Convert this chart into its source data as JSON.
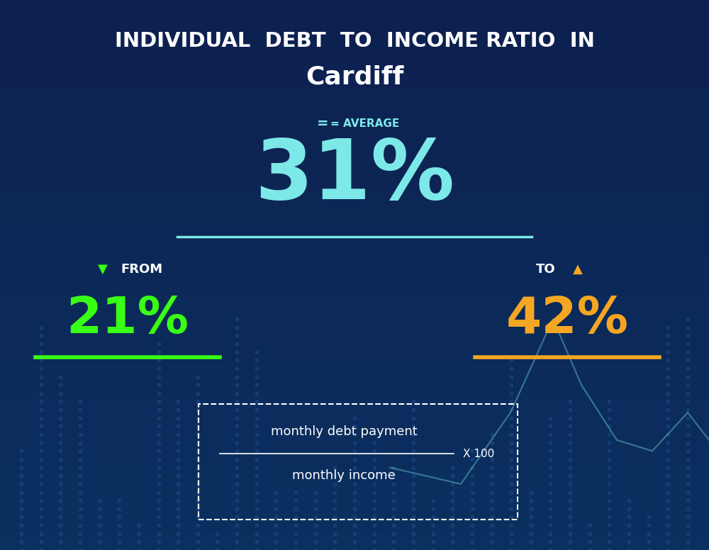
{
  "title_line1": "INDIVIDUAL  DEBT  TO  INCOME RATIO  IN",
  "title_line2": "Cardiff",
  "average_label": "= AVERAGE",
  "average_value": "31%",
  "from_label": "FROM",
  "from_value": "21%",
  "to_label": "TO",
  "to_value": "42%",
  "formula_numerator": "monthly debt payment",
  "formula_denominator": "monthly income",
  "formula_multiplier": "X 100",
  "bg_color_top": "#0d2050",
  "bg_color_bottom": "#0a3060",
  "average_color": "#7de8e8",
  "average_label_color": "#7de8e8",
  "from_color": "#39ff14",
  "to_color": "#f5a623",
  "title_color": "#ffffff",
  "subtitle_color": "#ffffff",
  "formula_color": "#ffffff",
  "separator_color": "#7de8e8",
  "from_line_color": "#39ff14",
  "to_line_color": "#f5a623",
  "down_arrow_color": "#39ff14",
  "up_arrow_color": "#f5a623",
  "chart_dot_color": "#1a4a8a",
  "line_chart_color": "#7de8e8"
}
